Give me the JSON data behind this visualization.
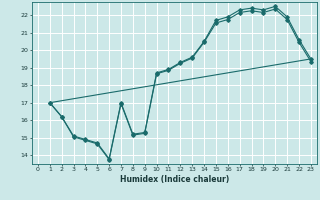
{
  "title": "",
  "xlabel": "Humidex (Indice chaleur)",
  "ylabel": "",
  "bg_color": "#cce8e8",
  "grid_color": "#ffffff",
  "line_color": "#1a6b6b",
  "xlim": [
    -0.5,
    23.5
  ],
  "ylim": [
    13.5,
    22.75
  ],
  "xticks": [
    0,
    1,
    2,
    3,
    4,
    5,
    6,
    7,
    8,
    9,
    10,
    11,
    12,
    13,
    14,
    15,
    16,
    17,
    18,
    19,
    20,
    21,
    22,
    23
  ],
  "yticks": [
    14,
    15,
    16,
    17,
    18,
    19,
    20,
    21,
    22
  ],
  "line1_x": [
    1,
    2,
    3,
    4,
    5,
    6,
    7,
    8,
    9,
    10,
    11,
    12,
    13,
    14,
    15,
    16,
    17,
    18,
    19,
    20,
    21,
    22,
    23
  ],
  "line1_y": [
    17.0,
    16.2,
    15.1,
    14.9,
    14.7,
    13.8,
    17.0,
    15.2,
    15.3,
    18.7,
    18.9,
    19.3,
    19.6,
    20.5,
    21.7,
    21.9,
    22.3,
    22.4,
    22.3,
    22.5,
    21.9,
    20.6,
    19.5
  ],
  "line2_x": [
    1,
    2,
    3,
    4,
    5,
    6,
    7,
    8,
    9,
    10,
    11,
    12,
    13,
    14,
    15,
    16,
    17,
    18,
    19,
    20,
    21,
    22,
    23
  ],
  "line2_y": [
    17.0,
    16.2,
    15.05,
    14.85,
    14.65,
    13.75,
    16.95,
    15.15,
    15.25,
    18.65,
    18.85,
    19.25,
    19.55,
    20.45,
    21.55,
    21.75,
    22.15,
    22.25,
    22.15,
    22.35,
    21.75,
    20.45,
    19.35
  ],
  "line3_x": [
    1,
    23
  ],
  "line3_y": [
    17.0,
    19.5
  ],
  "marker": "D",
  "marker_size": 1.8,
  "lw": 0.8
}
